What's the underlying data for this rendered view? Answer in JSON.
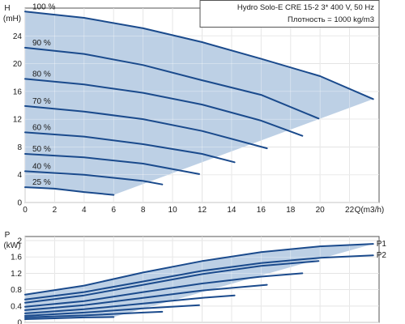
{
  "chart_data": [
    {
      "type": "line",
      "chart": "head",
      "ylabel": "H",
      "yunit": "(mH)",
      "xlabel": "Q(m3/h)",
      "xlim": [
        0,
        24
      ],
      "ylim": [
        0,
        28
      ],
      "xticks": [
        0,
        2,
        4,
        6,
        8,
        10,
        12,
        14,
        16,
        18,
        20,
        22
      ],
      "yticks": [
        0,
        4,
        8,
        12,
        16,
        20,
        24
      ],
      "grid": true,
      "info_box": {
        "line1": "Hydro Solo-E CRE 15-2    3* 400 V, 50 Hz",
        "line2": "Плотность = 1000 kg/m3"
      },
      "fill_color": "#b9cee4",
      "line_color": "#1a4a8c",
      "series": [
        {
          "name": "100 %",
          "x": [
            0,
            4,
            8,
            12,
            16,
            20,
            23.6
          ],
          "y": [
            27.5,
            26.6,
            25.1,
            23.1,
            20.7,
            18.2,
            14.9
          ]
        },
        {
          "name": "90 %",
          "x": [
            0,
            4,
            8,
            12,
            16,
            19.9
          ],
          "y": [
            22.3,
            21.4,
            19.8,
            17.6,
            15.5,
            12.1
          ]
        },
        {
          "name": "80 %",
          "x": [
            0,
            4,
            8,
            12,
            16,
            18.8
          ],
          "y": [
            17.8,
            17.0,
            15.8,
            14.1,
            11.8,
            9.6
          ]
        },
        {
          "name": "70 %",
          "x": [
            0,
            4,
            8,
            12,
            16.4
          ],
          "y": [
            13.9,
            13.1,
            12.0,
            10.3,
            7.8
          ]
        },
        {
          "name": "60 %",
          "x": [
            0,
            4,
            8,
            12,
            14.2
          ],
          "y": [
            10.1,
            9.5,
            8.4,
            7.0,
            5.8
          ]
        },
        {
          "name": "50 %",
          "x": [
            0,
            4,
            8,
            11.8
          ],
          "y": [
            7.0,
            6.5,
            5.6,
            4.1
          ]
        },
        {
          "name": "40 %",
          "x": [
            0,
            4,
            8,
            9.3
          ],
          "y": [
            4.5,
            4.0,
            3.1,
            2.6
          ]
        },
        {
          "name": "25 %",
          "x": [
            0,
            2,
            4,
            6
          ],
          "y": [
            2.2,
            2.0,
            1.5,
            1.1
          ]
        }
      ],
      "envelope": {
        "x": [
          0,
          4,
          8,
          12,
          16,
          20,
          23.6,
          6,
          0
        ],
        "y": [
          27.5,
          26.6,
          25.1,
          23.1,
          20.7,
          18.2,
          14.9,
          1.1,
          2.2
        ]
      }
    },
    {
      "type": "line",
      "chart": "power",
      "ylabel": "P",
      "yunit": "(kW)",
      "xlim": [
        0,
        24
      ],
      "ylim": [
        0,
        2.1
      ],
      "yticks": [
        0,
        0.4,
        0.8,
        1.2,
        1.6,
        2
      ],
      "grid": true,
      "fill_color": "#b9cee4",
      "line_color": "#1a4a8c",
      "series": [
        {
          "name": "P1",
          "x": [
            0,
            4,
            8,
            12,
            16,
            20,
            23.6
          ],
          "y": [
            0.68,
            0.9,
            1.22,
            1.5,
            1.72,
            1.86,
            1.92
          ]
        },
        {
          "name": "P2",
          "x": [
            0,
            4,
            8,
            12,
            16,
            20,
            23.6
          ],
          "y": [
            0.56,
            0.74,
            1.0,
            1.26,
            1.45,
            1.58,
            1.64
          ]
        },
        {
          "name": "",
          "x": [
            0,
            4,
            8,
            12,
            16,
            19.9
          ],
          "y": [
            0.48,
            0.66,
            0.92,
            1.18,
            1.38,
            1.5
          ]
        },
        {
          "name": "",
          "x": [
            0,
            4,
            8,
            12,
            16,
            18.8
          ],
          "y": [
            0.38,
            0.52,
            0.74,
            0.95,
            1.12,
            1.2
          ]
        },
        {
          "name": "",
          "x": [
            0,
            4,
            8,
            12,
            16.4
          ],
          "y": [
            0.3,
            0.42,
            0.6,
            0.78,
            0.92
          ]
        },
        {
          "name": "",
          "x": [
            0,
            4,
            8,
            12,
            14.2
          ],
          "y": [
            0.22,
            0.32,
            0.46,
            0.6,
            0.66
          ]
        },
        {
          "name": "",
          "x": [
            0,
            4,
            8,
            11.8
          ],
          "y": [
            0.16,
            0.24,
            0.34,
            0.42
          ]
        },
        {
          "name": "",
          "x": [
            0,
            4,
            8,
            9.3
          ],
          "y": [
            0.12,
            0.17,
            0.24,
            0.26
          ]
        },
        {
          "name": "",
          "x": [
            0,
            2,
            4,
            6
          ],
          "y": [
            0.08,
            0.1,
            0.12,
            0.13
          ]
        }
      ],
      "envelope": {
        "x": [
          0,
          4,
          8,
          12,
          16,
          20,
          23.6,
          6,
          0
        ],
        "y": [
          0.68,
          0.9,
          1.22,
          1.5,
          1.72,
          1.86,
          1.92,
          0.13,
          0.08
        ]
      }
    }
  ]
}
